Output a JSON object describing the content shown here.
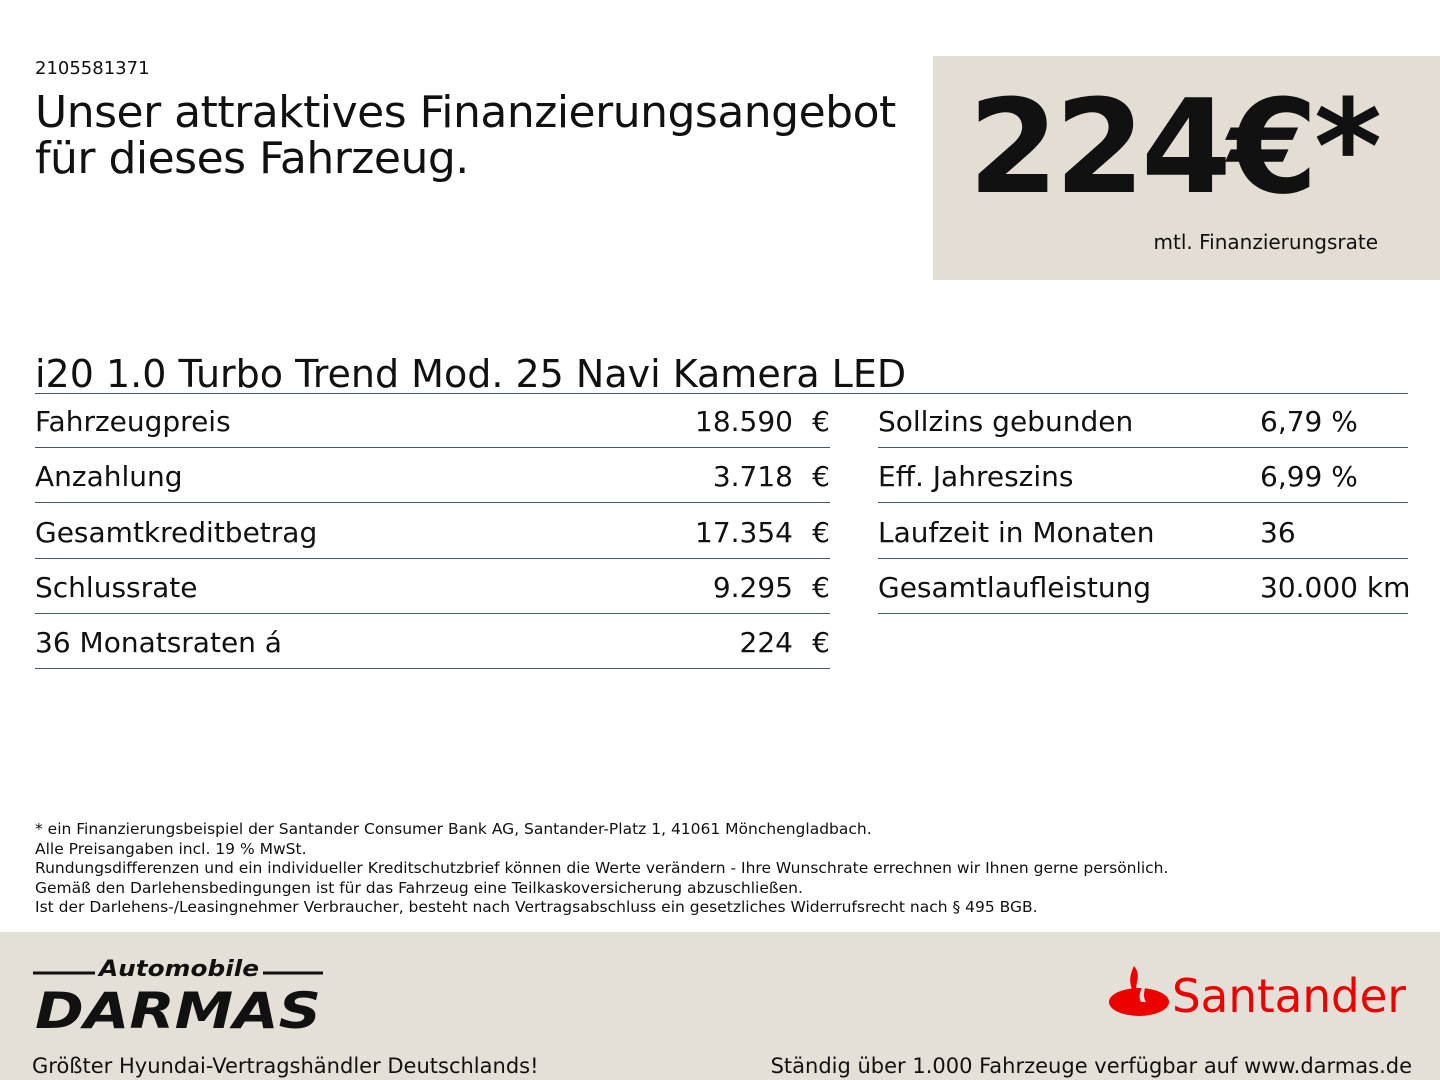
{
  "offer_id": "2105581371",
  "headline": "Unser attraktives Finanzierungsangebot für dieses Fahrzeug.",
  "price": {
    "value": "224€*",
    "label": "mtl. Finanzierungsrate"
  },
  "model": "i20 1.0 Turbo Trend Mod. 25 Navi Kamera LED",
  "left_rows": [
    {
      "label": "Fahrzeugpreis",
      "value": "18.590",
      "currency": "€"
    },
    {
      "label": "Anzahlung",
      "value": "3.718",
      "currency": "€"
    },
    {
      "label": "Gesamtkreditbetrag",
      "value": "17.354",
      "currency": "€"
    },
    {
      "label": "Schlussrate",
      "value": "9.295",
      "currency": "€"
    },
    {
      "label": "36 Monatsraten á",
      "value": "224",
      "currency": "€"
    }
  ],
  "right_rows": [
    {
      "label": "Sollzins gebunden",
      "value": "6,79 %"
    },
    {
      "label": "Eff. Jahreszins",
      "value": "6,99 %"
    },
    {
      "label": "Laufzeit in Monaten",
      "value": "36"
    },
    {
      "label": "Gesamtlaufleistung",
      "value": "30.000 km"
    }
  ],
  "notes": [
    "* ein Finanzierungsbeispiel der Santander Consumer Bank AG, Santander-Platz 1, 41061 Mönchengladbach.",
    "Alle Preisangaben incl. 19 % MwSt.",
    "Rundungsdifferenzen und ein individueller Kreditschutzbrief können die Werte verändern - Ihre Wunschrate errechnen wir Ihnen gerne persönlich.",
    "Gemäß den Darlehensbedingungen ist für das Fahrzeug eine Teilkaskoversicherung abzuschließen.",
    "Ist der Darlehens-/Leasingnehmer Verbraucher, besteht nach Vertragsabschluss ein gesetzliches Widerrufsrecht nach § 495 BGB."
  ],
  "footer": {
    "dealer_logo": {
      "top": "Automobile",
      "main": "DARMAS"
    },
    "bank_logo": "Santander",
    "slogan_left": "Größter Hyundai-Vertragshändler Deutschlands!",
    "slogan_right": "Ständig über 1.000 Fahrzeuge verfügbar auf www.darmas.de"
  },
  "colors": {
    "box_bg": "#e3ddd3",
    "footer_bg": "#e5e0d7",
    "rule": "#3f5a6e",
    "santander_red": "#ec0000"
  }
}
